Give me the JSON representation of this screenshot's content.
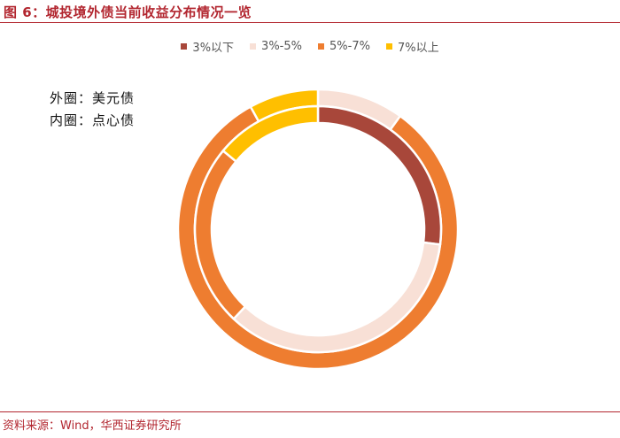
{
  "figure": {
    "title": "图 6：城投境外债当前收益分布情况一览",
    "source": "资料来源：Wind，华西证券研究所"
  },
  "notes": {
    "outer_label": "外圈：美元债",
    "inner_label": "内圈：点心债"
  },
  "chart_data": {
    "type": "pie",
    "subtype": "doughnut",
    "title": "",
    "legend_position": "top",
    "categories": [
      "3%以下",
      "3%-5%",
      "5%-7%",
      "7%以上"
    ],
    "colors": [
      "#a8473a",
      "#f8e0d6",
      "#ee7d30",
      "#ffbf00"
    ],
    "series": [
      {
        "name": "美元债",
        "ring": "outer",
        "values": [
          0,
          10,
          82,
          8
        ]
      },
      {
        "name": "点心债",
        "ring": "inner",
        "values": [
          27,
          35,
          24,
          14
        ]
      }
    ]
  }
}
